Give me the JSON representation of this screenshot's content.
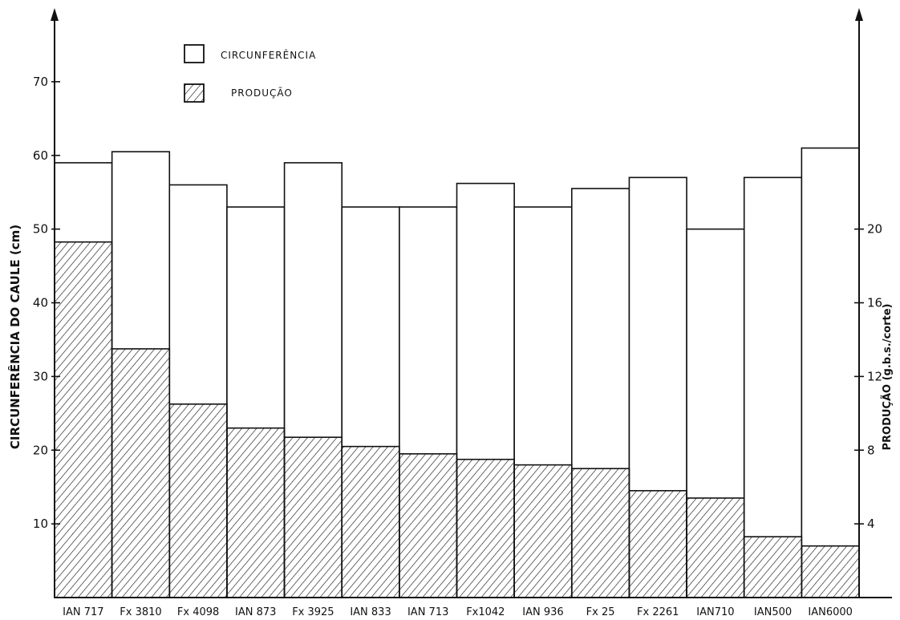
{
  "chart_data": {
    "type": "bar",
    "categories": [
      "IAN 717",
      "Fx 3810",
      "Fx 4098",
      "IAN 873",
      "Fx 3925",
      "IAN 833",
      "IAN 713",
      "Fx1042",
      "IAN 936",
      "Fx 25",
      "Fx 2261",
      "IAN710",
      "IAN500",
      "IAN6000"
    ],
    "series": [
      {
        "name": "CIRCUNFERÊNCIA",
        "axis": "left",
        "fill": "none",
        "values": [
          59,
          60.5,
          56,
          53,
          59,
          53,
          53,
          56.2,
          53,
          55.5,
          57,
          50,
          57,
          61
        ]
      },
      {
        "name": "PRODUÇÃO",
        "axis": "right",
        "fill": "hatched",
        "values": [
          19.3,
          13.5,
          10.5,
          9.2,
          8.7,
          8.2,
          7.8,
          7.5,
          7.2,
          7.0,
          5.8,
          5.4,
          3.3,
          2.8
        ]
      }
    ],
    "ylabel": "CIRCUNFERÊNCIA DO CAULE (cm)",
    "ylim": [
      0,
      80
    ],
    "yticks": [
      "10",
      "20",
      "30",
      "40",
      "50",
      "60",
      "70"
    ],
    "ylabel_right": "PRODUÇÃO (g.b.s./corte)",
    "ylim_right": [
      0,
      32
    ],
    "yticks_right": [
      "4",
      "8",
      "12",
      "16",
      "20"
    ],
    "legend_placement": "top-left",
    "grid": false
  }
}
